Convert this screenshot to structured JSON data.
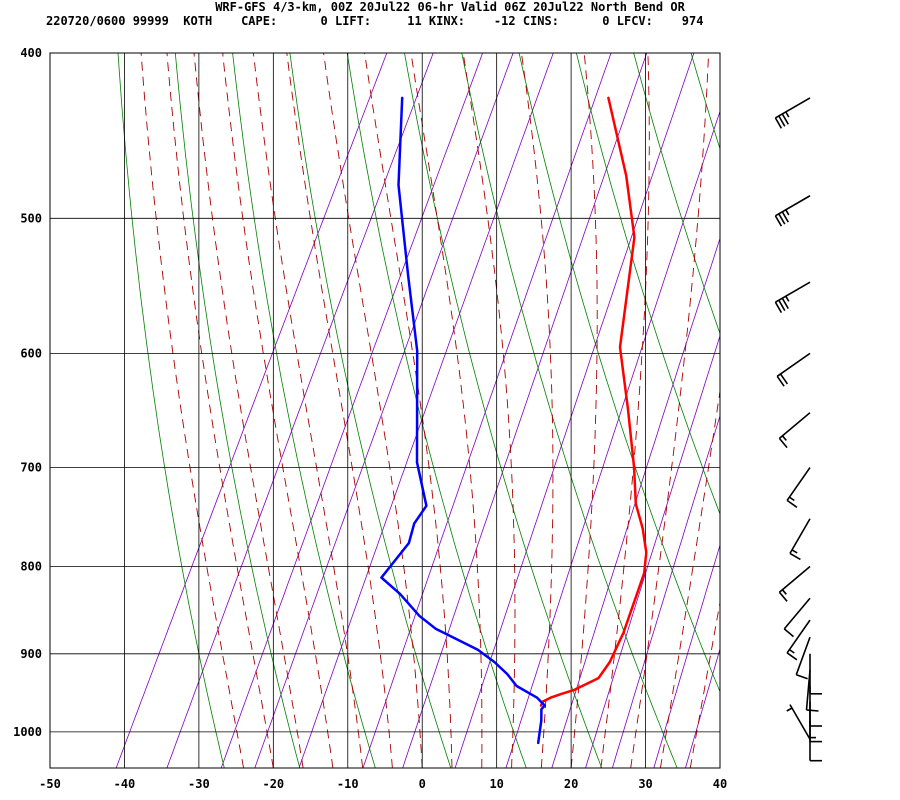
{
  "header": {
    "line1": "WRF-GFS 4/3-km, 00Z 20Jul22 06-hr Valid 06Z 20Jul22 North Bend OR",
    "line2": "220720/0600 99999  KOTH    CAPE:      0 LIFT:     11 KINX:    -12 CINS:      0 LFCV:    974"
  },
  "chart_data": {
    "type": "line",
    "title": "WRF-GFS 4/3-km, 00Z 20Jul22 06-hr Valid 06Z 20Jul22 North Bend OR",
    "xlabel": "",
    "ylabel": "",
    "xlim": [
      -50,
      40
    ],
    "ylim": [
      1050,
      400
    ],
    "y_scale": "log",
    "grid": true,
    "x_ticks": [
      "-50",
      "-40",
      "-30",
      "-20",
      "-10",
      "0",
      "10",
      "20",
      "30",
      "40"
    ],
    "y_ticks": [
      "400",
      "500",
      "600",
      "700",
      "800",
      "900",
      "1000"
    ],
    "colors": {
      "temperature": "#ff0000",
      "dewpoint": "#0000ff",
      "dry_adiabat": "#008000",
      "moist_adiabat": "#aa0000",
      "mixing_ratio": "#8000c0",
      "grid": "#000000"
    },
    "series": [
      {
        "id": "temperature",
        "points": [
          [
            -17.3,
            425
          ],
          [
            -10,
            472
          ],
          [
            -5,
            513
          ],
          [
            0,
            595
          ],
          [
            5,
            647
          ],
          [
            9.5,
            700
          ],
          [
            12,
            735
          ],
          [
            14.5,
            760
          ],
          [
            16.5,
            785
          ],
          [
            17.5,
            807
          ],
          [
            18,
            840
          ],
          [
            18.5,
            875
          ],
          [
            18.5,
            910
          ],
          [
            18,
            930
          ],
          [
            15.5,
            945
          ],
          [
            14,
            950
          ],
          [
            12.8,
            955
          ],
          [
            12,
            960
          ],
          [
            12,
            965
          ]
        ]
      },
      {
        "id": "dewpoint",
        "points": [
          [
            -45,
            425
          ],
          [
            -40,
            478
          ],
          [
            -33,
            540
          ],
          [
            -27,
            598
          ],
          [
            -20,
            695
          ],
          [
            -16,
            737
          ],
          [
            -16.5,
            755
          ],
          [
            -16,
            775
          ],
          [
            -17.5,
            812
          ],
          [
            -14,
            830
          ],
          [
            -10,
            855
          ],
          [
            -7,
            870
          ],
          [
            0,
            895
          ],
          [
            3,
            910
          ],
          [
            5.5,
            925
          ],
          [
            7.5,
            940
          ],
          [
            11,
            955
          ],
          [
            12.5,
            965
          ],
          [
            12.3,
            970
          ],
          [
            13,
            985
          ],
          [
            13.5,
            1000
          ],
          [
            14,
            1015
          ]
        ]
      }
    ],
    "wind_barbs": [
      {
        "pressure": 425,
        "direction_deg": 240,
        "speed_kt": 35
      },
      {
        "pressure": 485,
        "direction_deg": 240,
        "speed_kt": 35
      },
      {
        "pressure": 545,
        "direction_deg": 240,
        "speed_kt": 35
      },
      {
        "pressure": 600,
        "direction_deg": 235,
        "speed_kt": 20
      },
      {
        "pressure": 650,
        "direction_deg": 230,
        "speed_kt": 15
      },
      {
        "pressure": 700,
        "direction_deg": 215,
        "speed_kt": 15
      },
      {
        "pressure": 750,
        "direction_deg": 210,
        "speed_kt": 15
      },
      {
        "pressure": 800,
        "direction_deg": 230,
        "speed_kt": 15
      },
      {
        "pressure": 835,
        "direction_deg": 220,
        "speed_kt": 10
      },
      {
        "pressure": 860,
        "direction_deg": 215,
        "speed_kt": 15
      },
      {
        "pressure": 880,
        "direction_deg": 200,
        "speed_kt": 10
      },
      {
        "pressure": 900,
        "direction_deg": 180,
        "speed_kt": 10
      },
      {
        "pressure": 920,
        "direction_deg": 185,
        "speed_kt": 10
      },
      {
        "pressure": 940,
        "direction_deg": 180,
        "speed_kt": 10
      },
      {
        "pressure": 960,
        "direction_deg": 180,
        "speed_kt": 15
      },
      {
        "pressure": 985,
        "direction_deg": 180,
        "speed_kt": 10
      },
      {
        "pressure": 1010,
        "direction_deg": 330,
        "speed_kt": 5
      }
    ]
  }
}
